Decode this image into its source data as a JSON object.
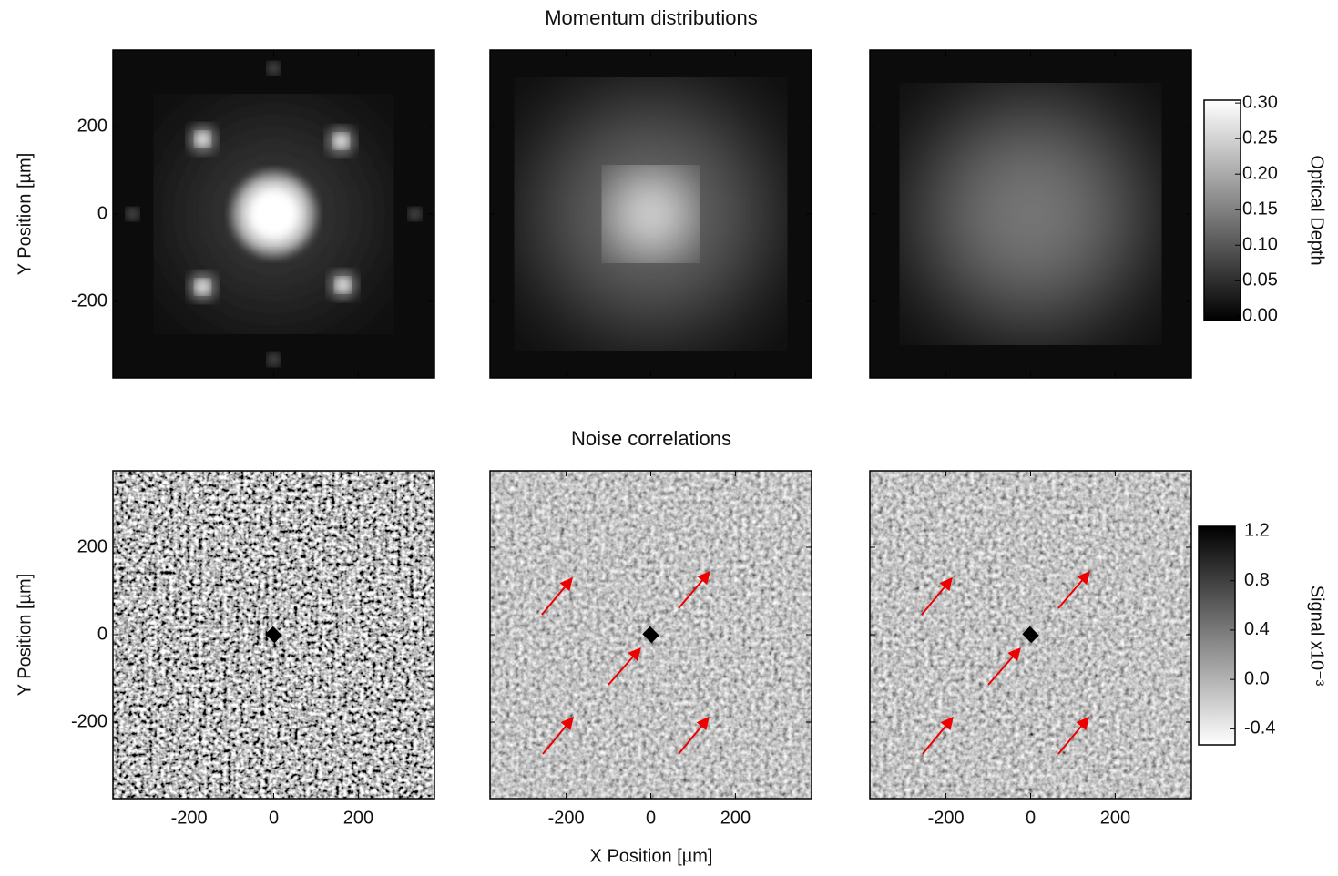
{
  "figure": {
    "xlabel": "X Position [µm]",
    "xlim": [
      -380,
      380
    ],
    "xticks": [
      -200,
      0,
      200
    ],
    "rows": [
      {
        "title": "Momentum distributions",
        "ylabel": "Y Position [µm]",
        "ylim": [
          -375,
          375
        ],
        "yticks": [
          -200,
          0,
          200
        ],
        "colorbar": {
          "label": "Optical Depth",
          "lim": [
            -0.006,
            0.304
          ],
          "direction": "white-high",
          "ticks": [
            {
              "value": 0.3,
              "label": "0.30"
            },
            {
              "value": 0.25,
              "label": "0.25"
            },
            {
              "value": 0.2,
              "label": "0.20"
            },
            {
              "value": 0.15,
              "label": "0.15"
            },
            {
              "value": 0.1,
              "label": "0.10"
            },
            {
              "value": 0.05,
              "label": "0.05"
            },
            {
              "value": 0,
              "label": "0.00"
            }
          ]
        }
      },
      {
        "title": "Noise correlations",
        "ylabel": "Y Position [µm]",
        "ylim": [
          -375,
          375
        ],
        "yticks": [
          -200,
          0,
          200
        ],
        "colorbar": {
          "label": "Signal x10⁻³",
          "lim": [
            -0.53,
            1.24
          ],
          "direction": "black-high",
          "ticks": [
            1.2,
            0.8,
            0.4,
            {
              "value": 0,
              "label": "0.0"
            },
            -0.4
          ]
        }
      }
    ]
  }
}
